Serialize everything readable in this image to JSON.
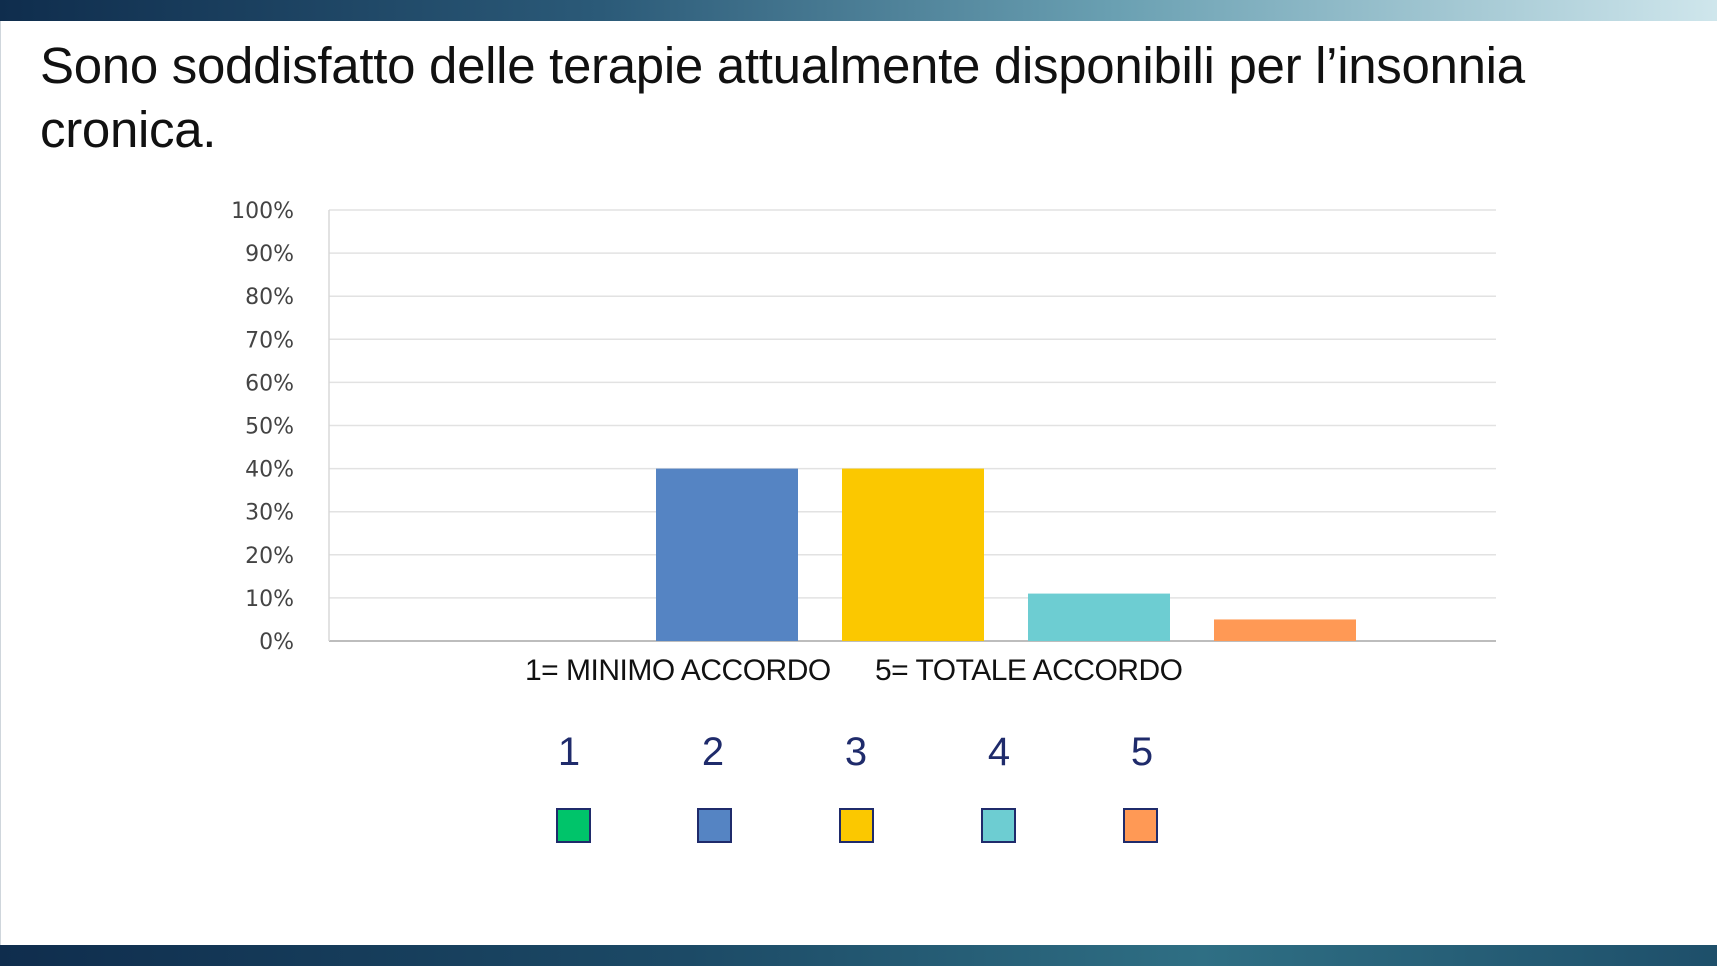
{
  "slide": {
    "title": "Sono soddisfatto delle terapie attualmente  disponibili per l’insonnia cronica.",
    "scale_min_label": "1= MINIMO ACCORDO",
    "scale_max_label": "5= TOTALE ACCORDO",
    "legend": [
      {
        "label": "1",
        "color": "#00c46a"
      },
      {
        "label": "2",
        "color": "#5584c3"
      },
      {
        "label": "3",
        "color": "#fbc800"
      },
      {
        "label": "4",
        "color": "#6dcdd2"
      },
      {
        "label": "5",
        "color": "#ff9955"
      }
    ],
    "colors": {
      "band": "#0f2d4d",
      "gridline": "#e2e2e2",
      "legend_text": "#1f2b6b"
    }
  },
  "chart_data": {
    "type": "bar",
    "categories": [
      "1",
      "2",
      "3",
      "4",
      "5"
    ],
    "values": [
      0,
      40,
      40,
      11,
      5
    ],
    "colors": [
      "#00c46a",
      "#5584c3",
      "#fbc800",
      "#6dcdd2",
      "#ff9955"
    ],
    "title": "",
    "xlabel": "",
    "ylabel": "",
    "ylim": [
      0,
      100
    ],
    "yticks": [
      "0%",
      "10%",
      "20%",
      "30%",
      "40%",
      "50%",
      "60%",
      "70%",
      "80%",
      "90%",
      "100%"
    ],
    "grid": true
  }
}
